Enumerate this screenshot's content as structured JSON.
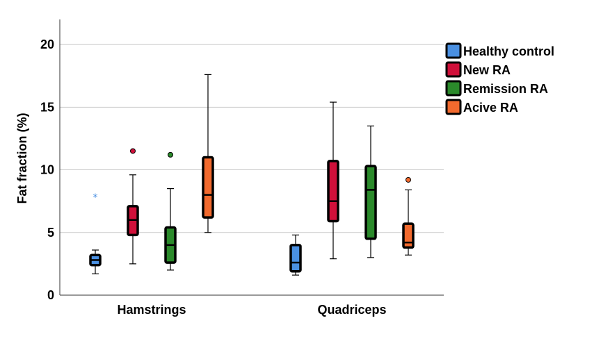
{
  "chart_data": {
    "type": "boxplot",
    "ylabel": "Fat fraction (%)",
    "ylim": [
      0,
      22
    ],
    "yticks": [
      0,
      5,
      10,
      15,
      20
    ],
    "gridlines": true,
    "legend_position": "top-right",
    "categories": [
      "Hamstrings",
      "Quadriceps"
    ],
    "series": [
      {
        "name": "Healthy control",
        "color": "#4a90e2",
        "boxes": [
          {
            "category": "Hamstrings",
            "min": 1.7,
            "q1": 2.4,
            "median": 2.8,
            "q3": 3.2,
            "max": 3.6,
            "outliers": [
              {
                "value": 7.8,
                "marker": "star"
              }
            ]
          },
          {
            "category": "Quadriceps",
            "min": 1.6,
            "q1": 1.9,
            "median": 2.6,
            "q3": 4.0,
            "max": 4.8,
            "outliers": []
          }
        ]
      },
      {
        "name": "New RA",
        "color": "#d0103a",
        "boxes": [
          {
            "category": "Hamstrings",
            "min": 2.5,
            "q1": 4.8,
            "median": 6.0,
            "q3": 7.1,
            "max": 9.6,
            "outliers": [
              {
                "value": 11.5,
                "marker": "circle"
              }
            ]
          },
          {
            "category": "Quadriceps",
            "min": 2.9,
            "q1": 5.9,
            "median": 7.5,
            "q3": 10.7,
            "max": 15.4,
            "outliers": []
          }
        ]
      },
      {
        "name": "Remission RA",
        "color": "#2b8a2b",
        "boxes": [
          {
            "category": "Hamstrings",
            "min": 2.0,
            "q1": 2.6,
            "median": 4.0,
            "q3": 5.4,
            "max": 8.5,
            "outliers": [
              {
                "value": 11.2,
                "marker": "circle"
              }
            ]
          },
          {
            "category": "Quadriceps",
            "min": 3.0,
            "q1": 4.5,
            "median": 8.4,
            "q3": 10.3,
            "max": 13.5,
            "outliers": []
          }
        ]
      },
      {
        "name": "Acive RA",
        "color": "#f26a2e",
        "boxes": [
          {
            "category": "Hamstrings",
            "min": 5.0,
            "q1": 6.2,
            "median": 8.0,
            "q3": 11.0,
            "max": 17.6,
            "outliers": []
          },
          {
            "category": "Quadriceps",
            "min": 3.2,
            "q1": 3.8,
            "median": 4.2,
            "q3": 5.7,
            "max": 8.4,
            "outliers": [
              {
                "value": 9.2,
                "marker": "circle"
              }
            ]
          }
        ]
      }
    ]
  }
}
